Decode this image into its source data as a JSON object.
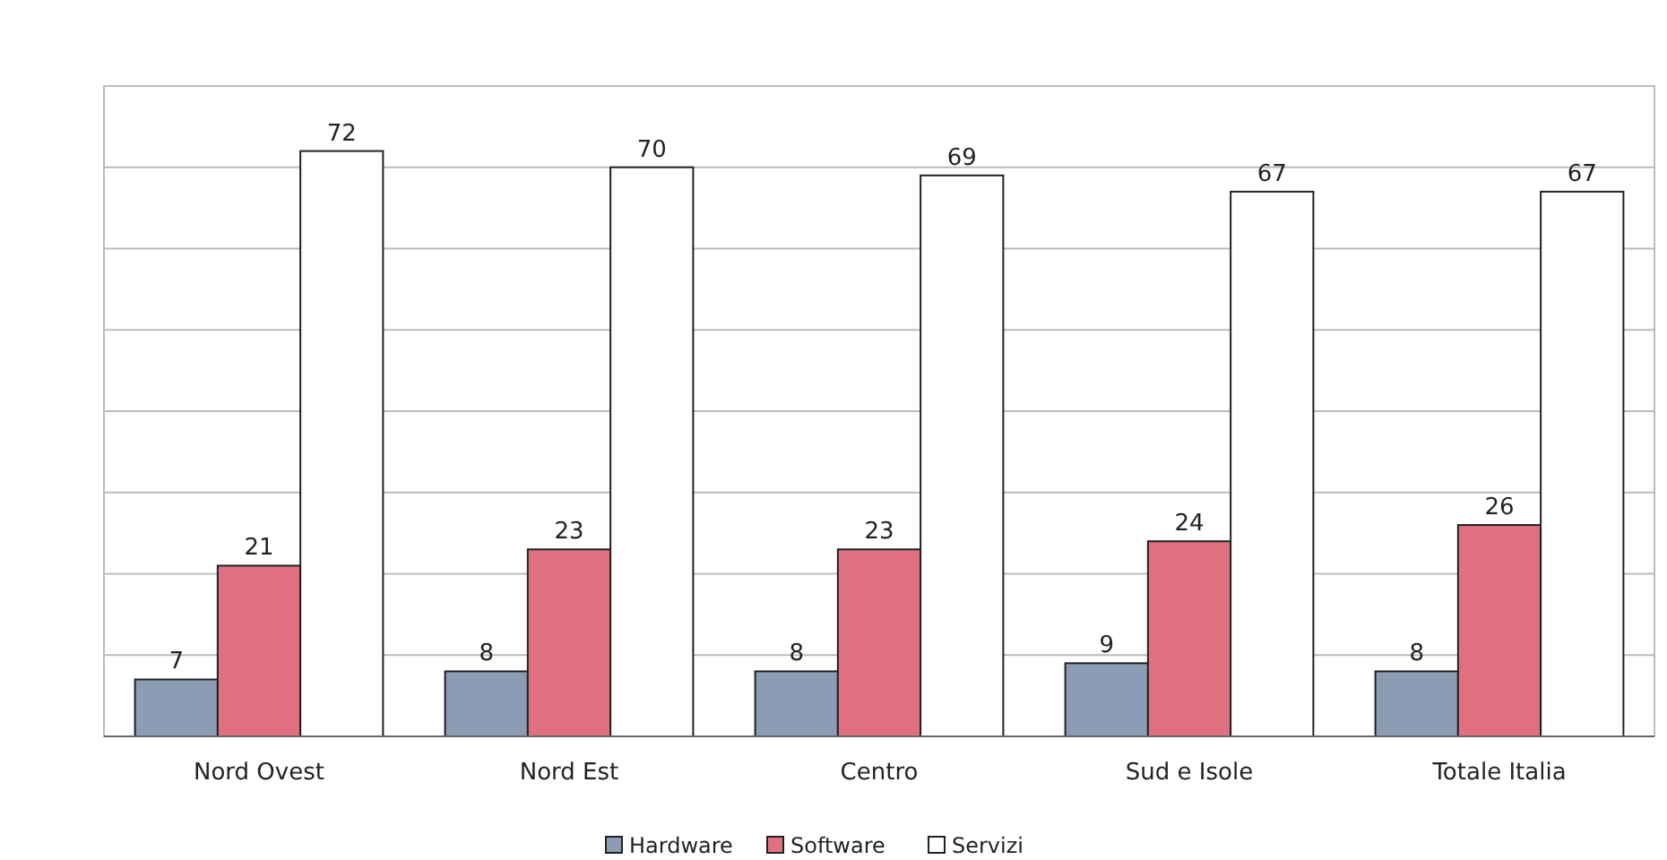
{
  "chart_data": {
    "type": "bar",
    "categories": [
      "Nord Ovest",
      "Nord Est",
      "Centro",
      "Sud e Isole",
      "Totale Italia"
    ],
    "series": [
      {
        "name": "Hardware",
        "color": "#8c9cb5",
        "values": [
          7,
          8,
          8,
          9,
          8
        ]
      },
      {
        "name": "Software",
        "color": "#e07080",
        "values": [
          21,
          23,
          23,
          24,
          26
        ]
      },
      {
        "name": "Servizi",
        "color": "#ffffff",
        "values": [
          72,
          70,
          69,
          67,
          67
        ]
      }
    ],
    "ylim": [
      0,
      80
    ],
    "yticks": [
      {
        "value": 0,
        "label": null
      },
      {
        "value": 10,
        "label": null
      },
      {
        "value": 20,
        "label": null
      },
      {
        "value": 30,
        "label": null
      },
      {
        "value": 40,
        "label": null
      },
      {
        "value": 50,
        "label": null
      },
      {
        "value": 60,
        "label": null
      },
      {
        "value": 70,
        "label": null
      },
      {
        "value": 80,
        "label": null
      }
    ],
    "tick_labels": "x",
    "grid": "y",
    "data_labels": true,
    "legend": "bottom"
  }
}
